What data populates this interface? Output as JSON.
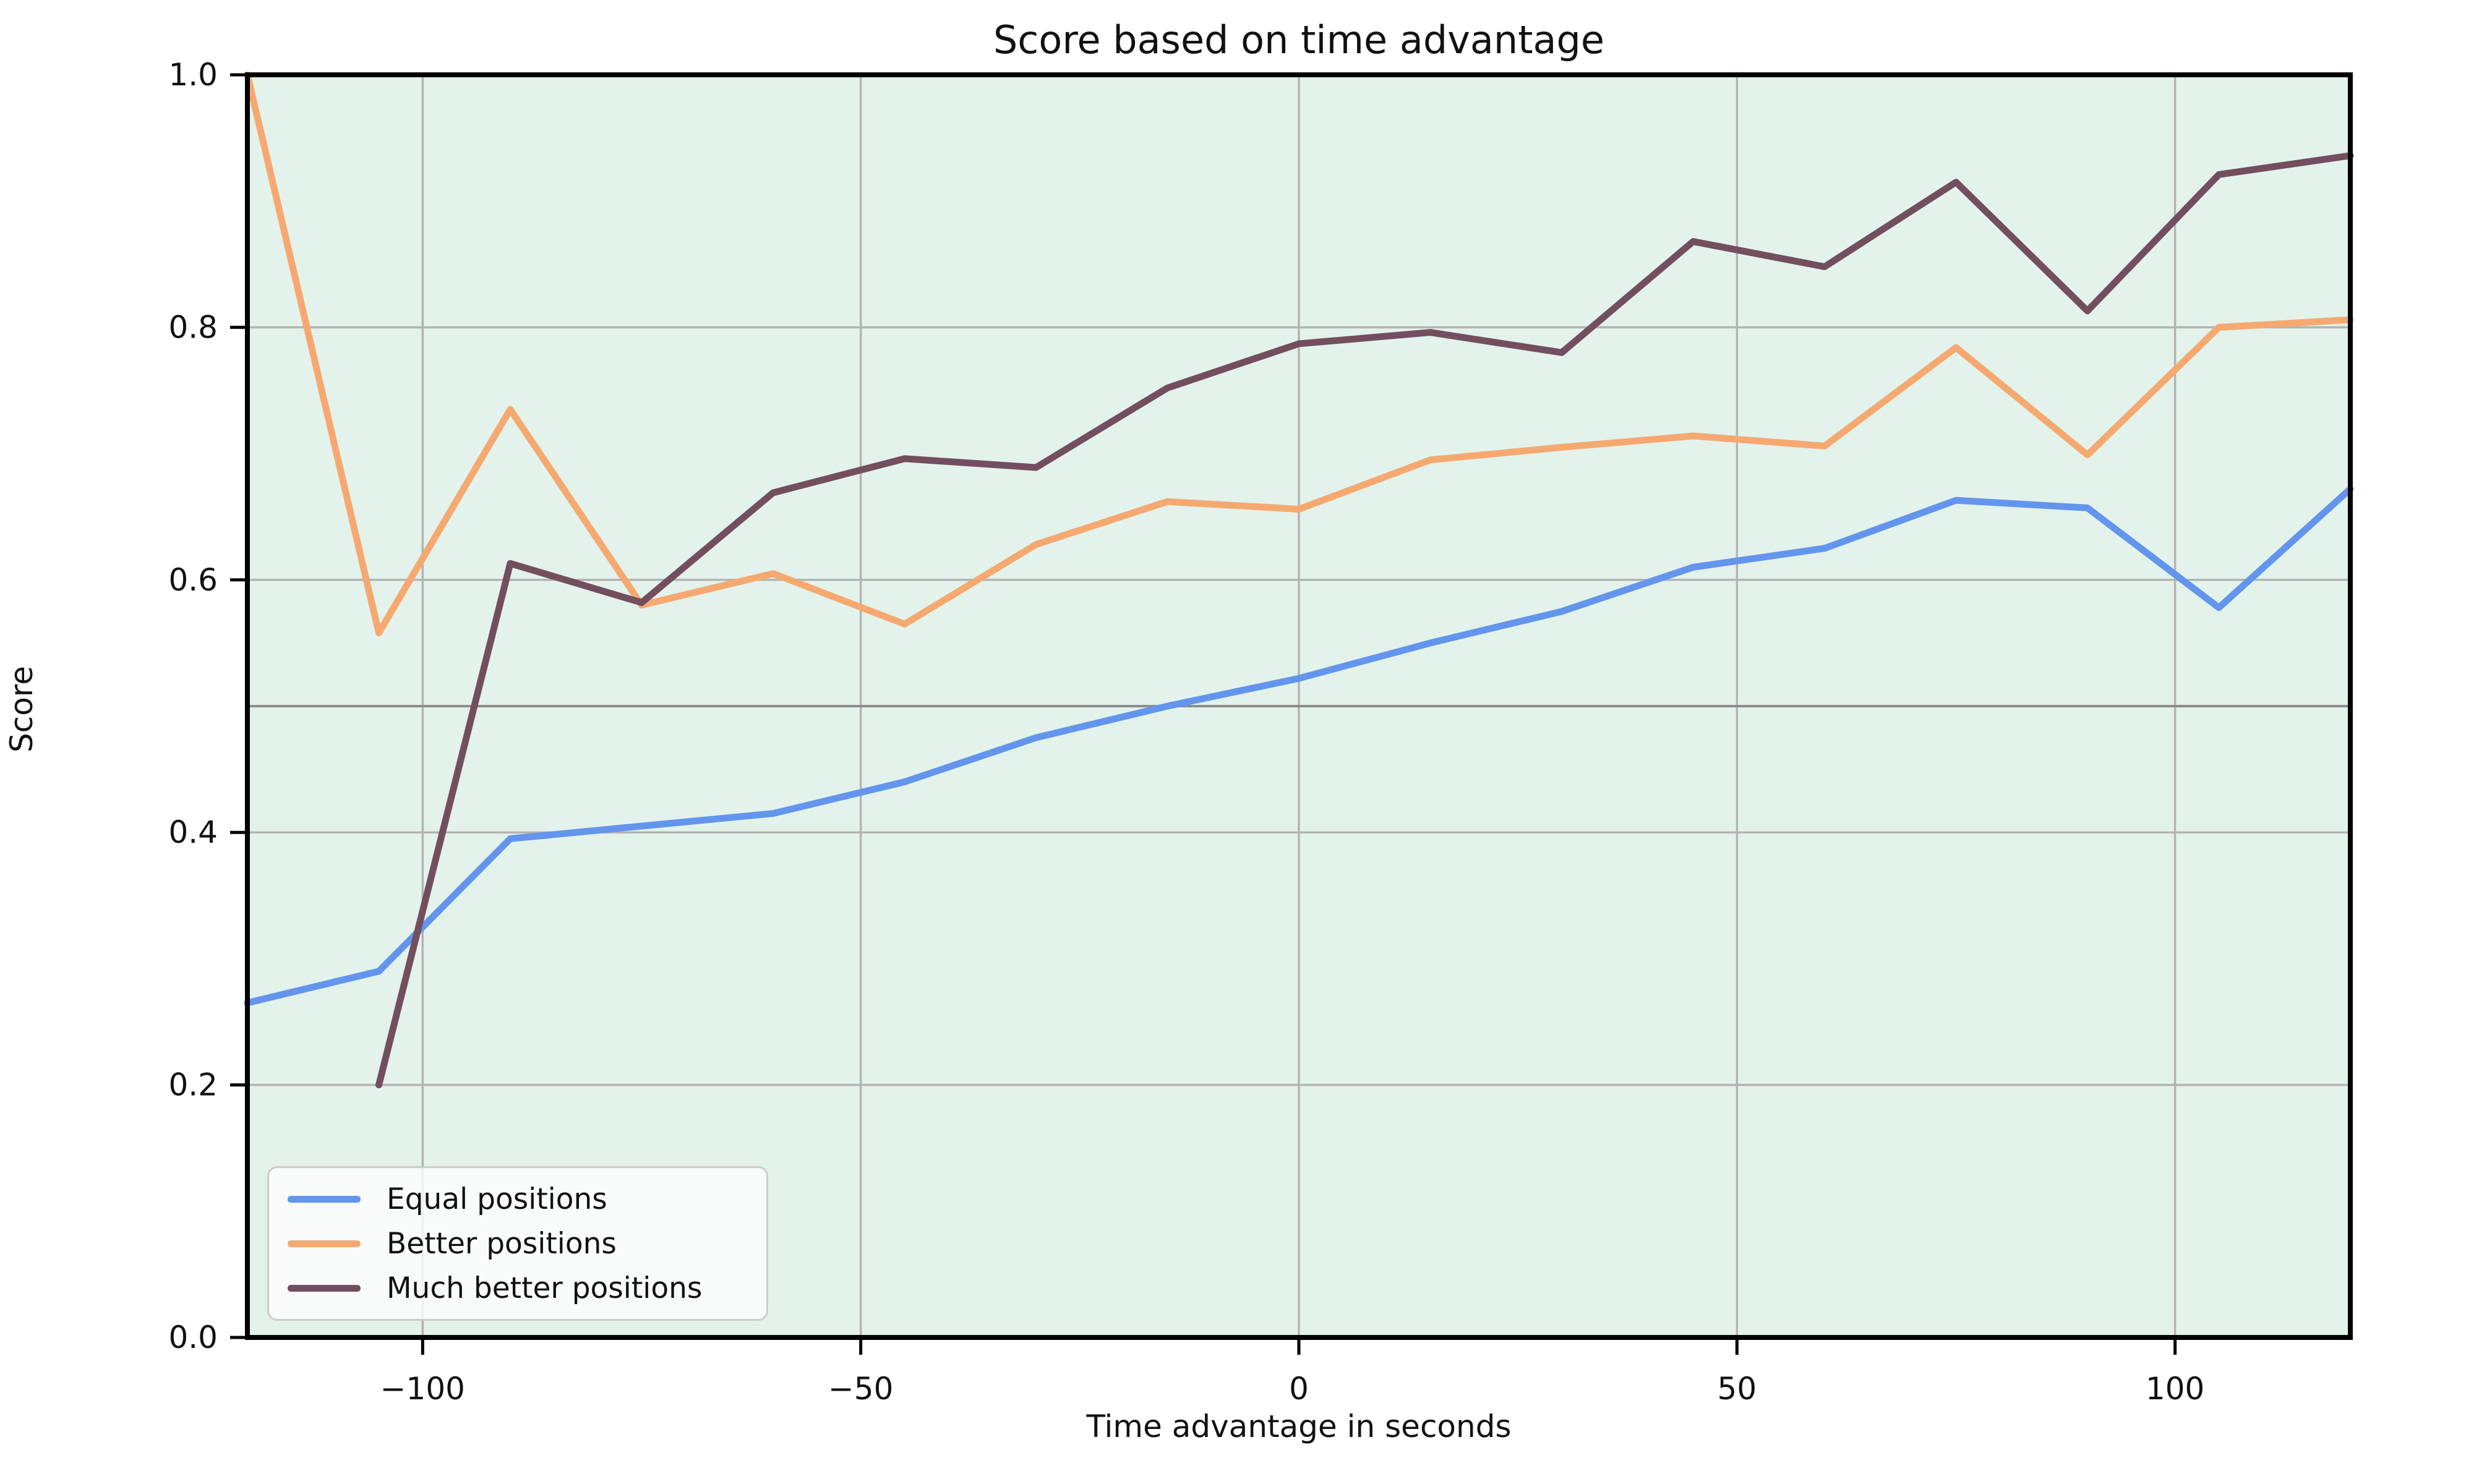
{
  "title": "Score based on time advantage",
  "axes": {
    "x": {
      "label": "Time advantage in seconds",
      "lim": [
        -120,
        120
      ],
      "ticks": [
        {
          "value": -100,
          "label": "−100"
        },
        {
          "value": -50,
          "label": "−50"
        },
        {
          "value": 0,
          "label": "0"
        },
        {
          "value": 50,
          "label": "50"
        },
        {
          "value": 100,
          "label": "100"
        }
      ]
    },
    "y": {
      "label": "Score",
      "lim": [
        0.0,
        1.0
      ],
      "ticks": [
        {
          "value": 0.0,
          "label": "0.0"
        },
        {
          "value": 0.2,
          "label": "0.2"
        },
        {
          "value": 0.4,
          "label": "0.4"
        },
        {
          "value": 0.6,
          "label": "0.6"
        },
        {
          "value": 0.8,
          "label": "0.8"
        },
        {
          "value": 1.0,
          "label": "1.0"
        }
      ]
    }
  },
  "grid": {
    "x_lines": [
      -100,
      -50,
      0,
      50,
      100
    ],
    "y_lines": [
      0.2,
      0.4,
      0.6,
      0.8
    ],
    "mid_line": 0.5,
    "color": "#b3b3b3",
    "mid_line_color": "#8d8d8d"
  },
  "colors": {
    "figure_bg": "#ffffff",
    "plot_bg": "#e3f3ec",
    "spine": "#000000",
    "text": "#111111"
  },
  "legend": {
    "position": "lower left"
  },
  "chart_data": {
    "type": "line",
    "title": "Score based on time advantage",
    "xlabel": "Time advantage in seconds",
    "ylabel": "Score",
    "xlim": [
      -120,
      120
    ],
    "ylim": [
      0.0,
      1.0
    ],
    "grid": true,
    "legend_position": "lower left",
    "x": [
      -120,
      -105,
      -90,
      -75,
      -60,
      -45,
      -30,
      -15,
      0,
      15,
      30,
      45,
      60,
      75,
      90,
      105,
      120
    ],
    "series": [
      {
        "name": "Equal positions",
        "color": "#6495ed",
        "values": [
          0.265,
          0.29,
          0.395,
          0.405,
          0.415,
          0.44,
          0.475,
          0.5,
          0.522,
          0.55,
          0.575,
          0.61,
          0.625,
          0.663,
          0.657,
          0.578,
          0.672
        ]
      },
      {
        "name": "Better positions",
        "color": "#f5a971",
        "values": [
          1.0,
          0.558,
          0.735,
          0.58,
          0.605,
          0.565,
          0.628,
          0.662,
          0.656,
          0.695,
          0.705,
          0.714,
          0.706,
          0.784,
          0.699,
          0.8,
          0.806
        ]
      },
      {
        "name": "Much better positions",
        "color": "#734e5f",
        "values": [
          null,
          0.2,
          0.613,
          0.582,
          0.669,
          0.696,
          0.689,
          0.752,
          0.787,
          0.796,
          0.78,
          0.868,
          0.848,
          0.915,
          0.813,
          0.921,
          0.936
        ]
      }
    ]
  }
}
